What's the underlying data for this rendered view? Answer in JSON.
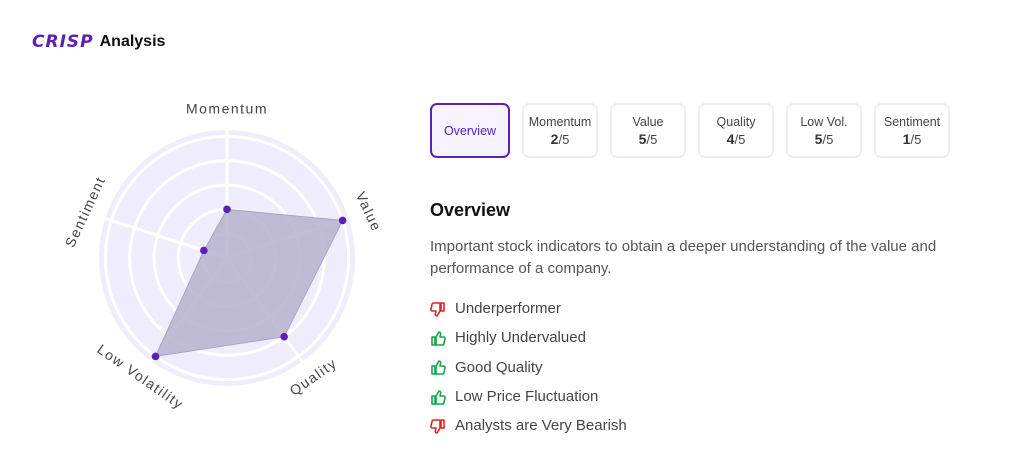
{
  "header": {
    "logo": "CRISP",
    "title": "Analysis"
  },
  "chart_data": {
    "type": "radar",
    "axes": [
      "Momentum",
      "Value",
      "Quality",
      "Low Volatility",
      "Sentiment"
    ],
    "values": [
      2,
      5,
      4,
      5,
      1
    ],
    "max": 5,
    "colors": {
      "fill": "#b7b2cc",
      "point": "#5b21b6",
      "bg": "#efedfb"
    }
  },
  "tabs": [
    {
      "label": "Overview",
      "active": true
    },
    {
      "label": "Momentum",
      "score": "2",
      "max": "/5"
    },
    {
      "label": "Value",
      "score": "5",
      "max": "/5"
    },
    {
      "label": "Quality",
      "score": "4",
      "max": "/5"
    },
    {
      "label": "Low Vol.",
      "score": "5",
      "max": "/5"
    },
    {
      "label": "Sentiment",
      "score": "1",
      "max": "/5"
    }
  ],
  "section": {
    "title": "Overview",
    "description": "Important stock indicators to obtain a deeper understanding of the value and performance of a company."
  },
  "indicators": [
    {
      "text": "Underperformer",
      "type": "negative",
      "icon": "thumbs-down-icon",
      "color": "#dc2626"
    },
    {
      "text": "Highly Undervalued",
      "type": "positive",
      "icon": "thumbs-up-icon",
      "color": "#16a34a"
    },
    {
      "text": "Good Quality",
      "type": "positive",
      "icon": "thumbs-up-icon",
      "color": "#16a34a"
    },
    {
      "text": "Low Price Fluctuation",
      "type": "positive",
      "icon": "thumbs-up-icon",
      "color": "#16a34a"
    },
    {
      "text": "Analysts are Very Bearish",
      "type": "negative",
      "icon": "thumbs-down-icon",
      "color": "#dc2626"
    }
  ]
}
